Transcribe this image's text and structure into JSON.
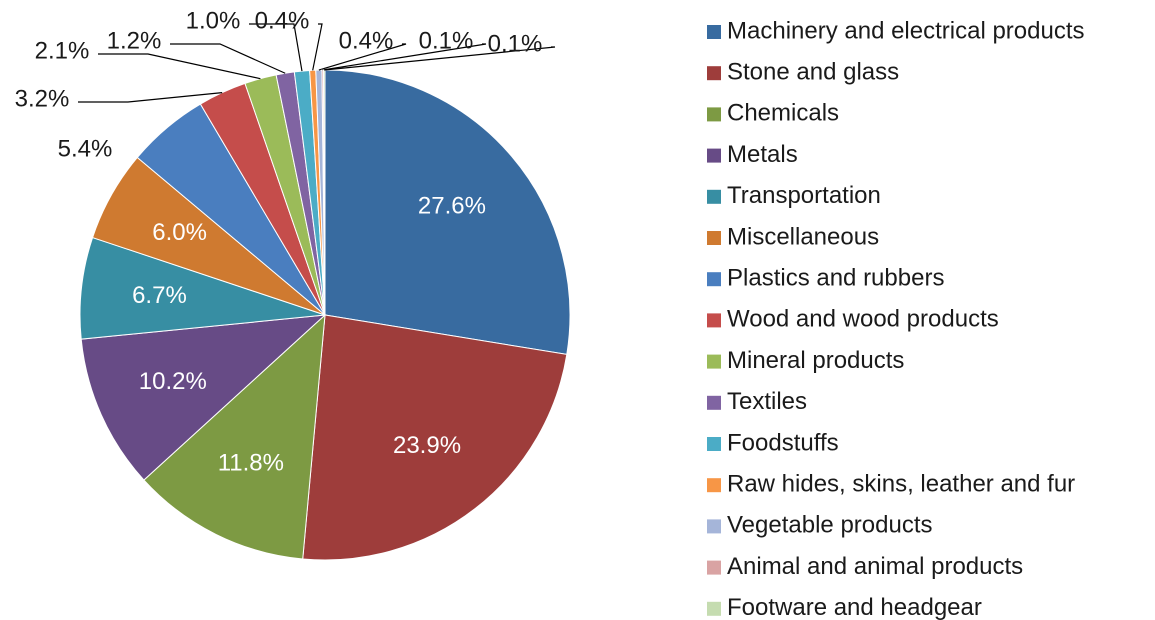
{
  "chart_data": {
    "type": "pie",
    "categories": [
      "Machinery and electrical products",
      "Stone and glass",
      "Chemicals",
      "Metals",
      "Transportation",
      "Miscellaneous",
      "Plastics and rubbers",
      "Wood and wood products",
      "Mineral products",
      "Textiles",
      "Foodstuffs",
      "Raw hides, skins, leather and fur",
      "Vegetable products",
      "Animal and animal products",
      "Footware and headgear"
    ],
    "values": [
      27.6,
      23.9,
      11.8,
      10.2,
      6.7,
      6.0,
      5.4,
      3.2,
      2.1,
      1.2,
      1.0,
      0.4,
      0.4,
      0.1,
      0.1
    ],
    "value_labels": [
      "27.6%",
      "23.9%",
      "11.8%",
      "10.2%",
      "6.7%",
      "6.0%",
      "5.4%",
      "3.2%",
      "2.1%",
      "1.2%",
      "1.0%",
      "0.4%",
      "0.4%",
      "0.1%",
      "0.1%"
    ],
    "colors": [
      "#386ba0",
      "#9e3d3b",
      "#7d9a43",
      "#674b86",
      "#378ea3",
      "#cf7a30",
      "#4a7ebf",
      "#c54d4b",
      "#9bbb59",
      "#8064a2",
      "#4bacc6",
      "#f79646",
      "#a5b5d9",
      "#d9a3a3",
      "#c5dcb0"
    ],
    "legend": "right"
  }
}
